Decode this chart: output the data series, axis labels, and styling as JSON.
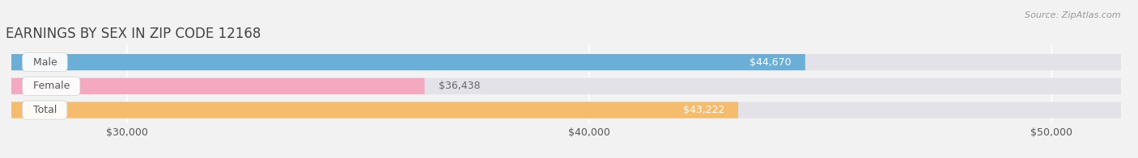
{
  "title": "EARNINGS BY SEX IN ZIP CODE 12168",
  "source": "Source: ZipAtlas.com",
  "categories": [
    "Male",
    "Female",
    "Total"
  ],
  "values": [
    44670,
    36438,
    43222
  ],
  "bar_colors": [
    "#6baed6",
    "#f4a9c0",
    "#f5bc6e"
  ],
  "value_labels": [
    "$44,670",
    "$36,438",
    "$43,222"
  ],
  "value_label_inside": [
    true,
    false,
    true
  ],
  "value_label_colors_inside": [
    "#ffffff",
    "#666666",
    "#ffffff"
  ],
  "xmin": 27500,
  "xmax": 51500,
  "xticks": [
    30000,
    40000,
    50000
  ],
  "xtick_labels": [
    "$30,000",
    "$40,000",
    "$50,000"
  ],
  "background_color": "#f2f2f2",
  "bar_background": "#e2e2e8",
  "title_color": "#444444",
  "label_text_color": "#555555",
  "source_color": "#999999",
  "grid_color": "#ffffff"
}
